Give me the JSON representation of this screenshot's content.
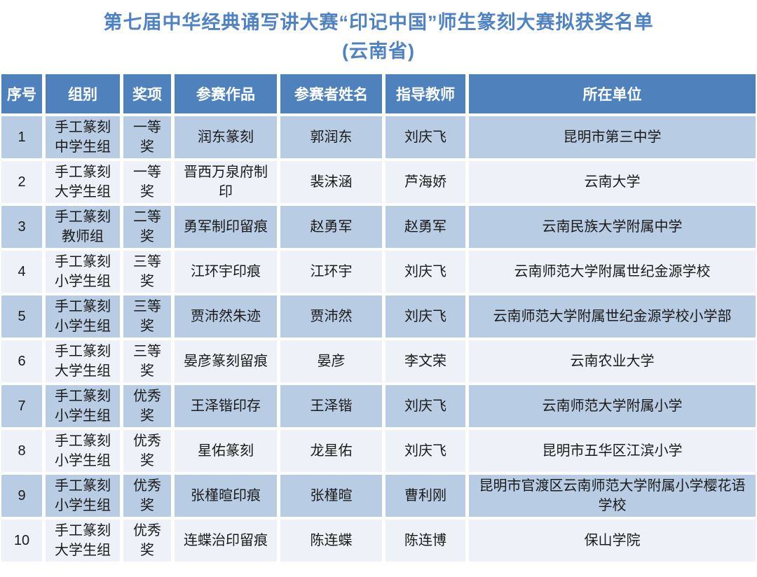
{
  "title": {
    "line1": "第七届中华经典诵写讲大赛“印记中国”师生篆刻大赛拟获奖名单",
    "line2": "(云南省)"
  },
  "colors": {
    "title_text": "#4e82c2",
    "header_bg": "#4f81bd",
    "header_text": "#ffffff",
    "row_odd_bg": "#b8cce4",
    "row_even_bg": "#eef2f8",
    "cell_text": "#1a1a1a",
    "grid_gap": "#ffffff"
  },
  "table": {
    "headers": [
      "序号",
      "组别",
      "奖项",
      "参赛作品",
      "参赛者姓名",
      "指导教师",
      "所在单位"
    ],
    "column_keys": [
      "index",
      "group",
      "award",
      "work",
      "participant",
      "teacher",
      "institution"
    ],
    "rows": [
      [
        "1",
        "手工篆刻\n中学生组",
        "一等奖",
        "润东篆刻",
        "郭润东",
        "刘庆飞",
        "昆明市第三中学"
      ],
      [
        "2",
        "手工篆刻\n大学生组",
        "一等奖",
        "晋西万泉府制\n印",
        "裴沫涵",
        "芦海娇",
        "云南大学"
      ],
      [
        "3",
        "手工篆刻\n教师组",
        "二等奖",
        "勇军制印留痕",
        "赵勇军",
        "赵勇军",
        "云南民族大学附属中学"
      ],
      [
        "4",
        "手工篆刻\n小学生组",
        "三等奖",
        "江环宇印痕",
        "江环宇",
        "刘庆飞",
        "云南师范大学附属世纪金源学校"
      ],
      [
        "5",
        "手工篆刻\n小学生组",
        "三等奖",
        "贾沛然朱迹",
        "贾沛然",
        "刘庆飞",
        "云南师范大学附属世纪金源学校小学部"
      ],
      [
        "6",
        "手工篆刻\n大学生组",
        "三等奖",
        "晏彦篆刻留痕",
        "晏彦",
        "李文荣",
        "云南农业大学"
      ],
      [
        "7",
        "手工篆刻\n小学生组",
        "优秀奖",
        "王泽锴印存",
        "王泽锴",
        "刘庆飞",
        "云南师范大学附属小学"
      ],
      [
        "8",
        "手工篆刻\n小学生组",
        "优秀奖",
        "星佑篆刻",
        "龙星佑",
        "刘庆飞",
        "昆明市五华区江滨小学"
      ],
      [
        "9",
        "手工篆刻\n小学生组",
        "优秀奖",
        "张槿暄印痕",
        "张槿暄",
        "曹利刚",
        "昆明市官渡区云南师范大学附属小学樱花语学校"
      ],
      [
        "10",
        "手工篆刻\n大学生组",
        "优秀奖",
        "连蝶治印留痕",
        "陈连蝶",
        "陈连博",
        "保山学院"
      ]
    ]
  }
}
